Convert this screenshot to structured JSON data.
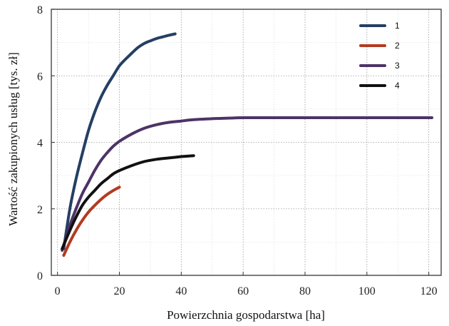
{
  "chart_data": {
    "type": "line",
    "title": "",
    "xlabel": "Powierzchnia gospodarstwa [ha]",
    "ylabel": "Wartość zakupionych usług [tys. zł]",
    "xlim": [
      -2,
      124
    ],
    "ylim": [
      0,
      8
    ],
    "xticks": [
      0,
      20,
      40,
      60,
      80,
      100,
      120
    ],
    "yticks": [
      0,
      2,
      4,
      6,
      8
    ],
    "grid": true,
    "legend": "top-right",
    "series": [
      {
        "name": "1",
        "color": "#243f63",
        "x": [
          2,
          4,
          6,
          8,
          10,
          12,
          14,
          16,
          18,
          20,
          22,
          24,
          26,
          28,
          30,
          32,
          34,
          36,
          38
        ],
        "y": [
          0.8,
          2.0,
          2.9,
          3.65,
          4.35,
          4.9,
          5.35,
          5.7,
          6.0,
          6.3,
          6.5,
          6.68,
          6.85,
          6.97,
          7.05,
          7.12,
          7.17,
          7.22,
          7.26
        ]
      },
      {
        "name": "2",
        "color": "#b33a21",
        "x": [
          2,
          4,
          6,
          8,
          10,
          12,
          14,
          16,
          18,
          20
        ],
        "y": [
          0.6,
          1.0,
          1.35,
          1.65,
          1.9,
          2.1,
          2.28,
          2.43,
          2.55,
          2.65
        ]
      },
      {
        "name": "3",
        "color": "#4d3366",
        "x": [
          1.5,
          4,
          6,
          8,
          10,
          12,
          14,
          16,
          18,
          20,
          24,
          28,
          32,
          36,
          40,
          44,
          50,
          56,
          60,
          70,
          80,
          90,
          100,
          110,
          121
        ],
        "y": [
          0.75,
          1.5,
          2.0,
          2.45,
          2.8,
          3.15,
          3.45,
          3.68,
          3.88,
          4.03,
          4.25,
          4.42,
          4.53,
          4.6,
          4.64,
          4.68,
          4.71,
          4.73,
          4.74,
          4.74,
          4.74,
          4.74,
          4.74,
          4.74,
          4.74
        ]
      },
      {
        "name": "4",
        "color": "#111111",
        "x": [
          1.5,
          4,
          6,
          8,
          10,
          12,
          14,
          16,
          18,
          20,
          24,
          28,
          32,
          36,
          40,
          44
        ],
        "y": [
          0.8,
          1.35,
          1.75,
          2.1,
          2.35,
          2.55,
          2.75,
          2.9,
          3.05,
          3.15,
          3.3,
          3.42,
          3.49,
          3.53,
          3.57,
          3.6
        ]
      }
    ]
  }
}
